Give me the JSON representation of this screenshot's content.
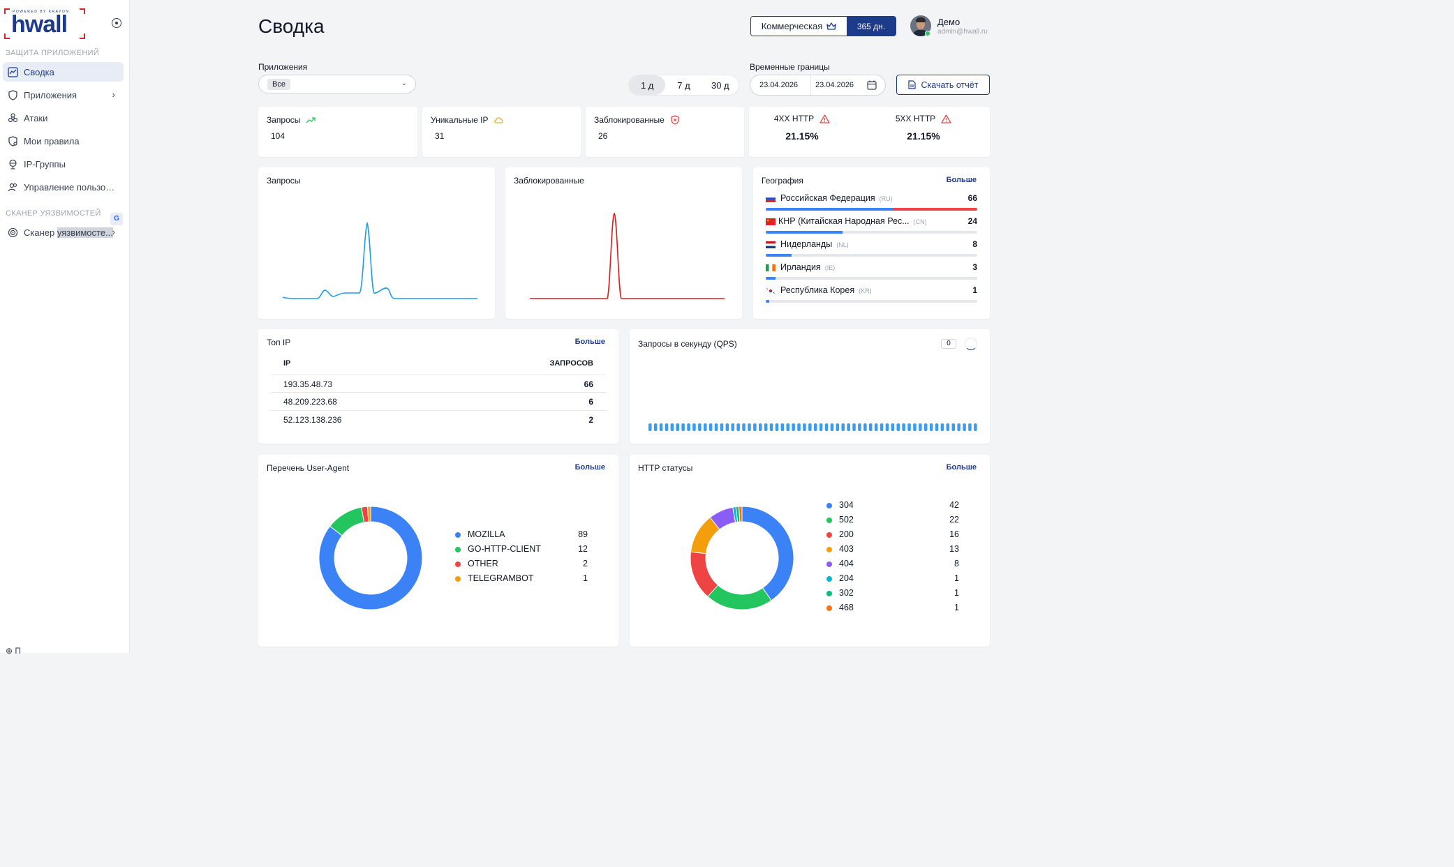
{
  "sidebar": {
    "logo_top": "POWERED BY KRAYON",
    "logo_word": "hwall",
    "section_protection": "ЗАЩИТА ПРИЛОЖЕНИЙ",
    "items": [
      {
        "label": "Сводка",
        "icon": "chart-icon",
        "active": true
      },
      {
        "label": "Приложения",
        "icon": "shield-icon"
      },
      {
        "label": "Атаки",
        "icon": "biohazard-icon"
      },
      {
        "label": "Мои правила",
        "icon": "shield-gear-icon"
      },
      {
        "label": "IP-Группы",
        "icon": "globe-icon"
      },
      {
        "label": "Управление пользов...",
        "icon": "users-icon"
      }
    ],
    "section_scanner": "СКАНЕР УЯЗВИМОСТЕЙ",
    "scanner_item": {
      "label_pre": "Сканер ",
      "label_hl": "уязвимосте...",
      "icon": "scan-icon"
    },
    "bottom_item": "П"
  },
  "header": {
    "title": "Сводка",
    "plan": "Коммерческая",
    "plan_days": "365 дн.",
    "user_name": "Демо",
    "user_email": "admin@hwall.ru"
  },
  "filters": {
    "apps_label": "Приложения",
    "apps_value": "Все",
    "periods": [
      "1 д",
      "7 д",
      "30 д"
    ],
    "period_selected": "1 д",
    "time_label": "Временные границы",
    "date_from": "23.04.2026",
    "date_to": "23.04.2026",
    "download": "Скачать отчёт"
  },
  "stats": {
    "requests": {
      "label": "Запросы",
      "value": "104"
    },
    "unique_ip": {
      "label": "Уникальные IP",
      "value": "31"
    },
    "blocked": {
      "label": "Заблокированные",
      "value": "26"
    },
    "http4xx": {
      "label": "4XX HTTP",
      "value": "21.15%"
    },
    "http5xx": {
      "label": "5XX HTTP",
      "value": "21.15%"
    }
  },
  "charts_titles": {
    "requests": "Запросы",
    "blocked": "Заблокированные"
  },
  "geo": {
    "title": "География",
    "more": "Больше",
    "rows": [
      {
        "name": "Российская Федерация",
        "code": "(RU)",
        "count": "66"
      },
      {
        "name": "КНР (Китайская Народная Рес...",
        "code": "(CN)",
        "count": "24"
      },
      {
        "name": "Нидерланды",
        "code": "(NL)",
        "count": "8"
      },
      {
        "name": "Ирландия",
        "code": "(IE)",
        "count": "3"
      },
      {
        "name": "Республика Корея",
        "code": "(KR)",
        "count": "1"
      }
    ]
  },
  "top_ip": {
    "title": "Топ IP",
    "more": "Больше",
    "col_ip": "IP",
    "col_count": "ЗАПРОСОВ",
    "rows": [
      {
        "ip": "193.35.48.73",
        "count": "66"
      },
      {
        "ip": "48.209.223.68",
        "count": "6"
      },
      {
        "ip": "52.123.138.236",
        "count": "2"
      }
    ]
  },
  "qps": {
    "title": "Запросы в секунду (QPS)",
    "value": "0"
  },
  "user_agent": {
    "title": "Перечень User-Agent",
    "more": "Больше",
    "items": [
      {
        "name": "MOZILLA",
        "value": "89",
        "color": "#3b82f6"
      },
      {
        "name": "GO-HTTP-CLIENT",
        "value": "12",
        "color": "#22c55e"
      },
      {
        "name": "OTHER",
        "value": "2",
        "color": "#ef4444"
      },
      {
        "name": "TELEGRAMBOT",
        "value": "1",
        "color": "#f59e0b"
      }
    ]
  },
  "http_status": {
    "title": "HTTP статусы",
    "more": "Больше",
    "items": [
      {
        "name": "304",
        "value": "42",
        "color": "#3b82f6"
      },
      {
        "name": "502",
        "value": "22",
        "color": "#22c55e"
      },
      {
        "name": "200",
        "value": "16",
        "color": "#ef4444"
      },
      {
        "name": "403",
        "value": "13",
        "color": "#f59e0b"
      },
      {
        "name": "404",
        "value": "8",
        "color": "#8b5cf6"
      },
      {
        "name": "204",
        "value": "1",
        "color": "#06b6d4"
      },
      {
        "name": "302",
        "value": "1",
        "color": "#10b981"
      },
      {
        "name": "468",
        "value": "1",
        "color": "#f97316"
      }
    ]
  },
  "colors": {
    "brand": "#1e3a8a",
    "accent": "#3b82f6",
    "danger": "#ef4444"
  }
}
